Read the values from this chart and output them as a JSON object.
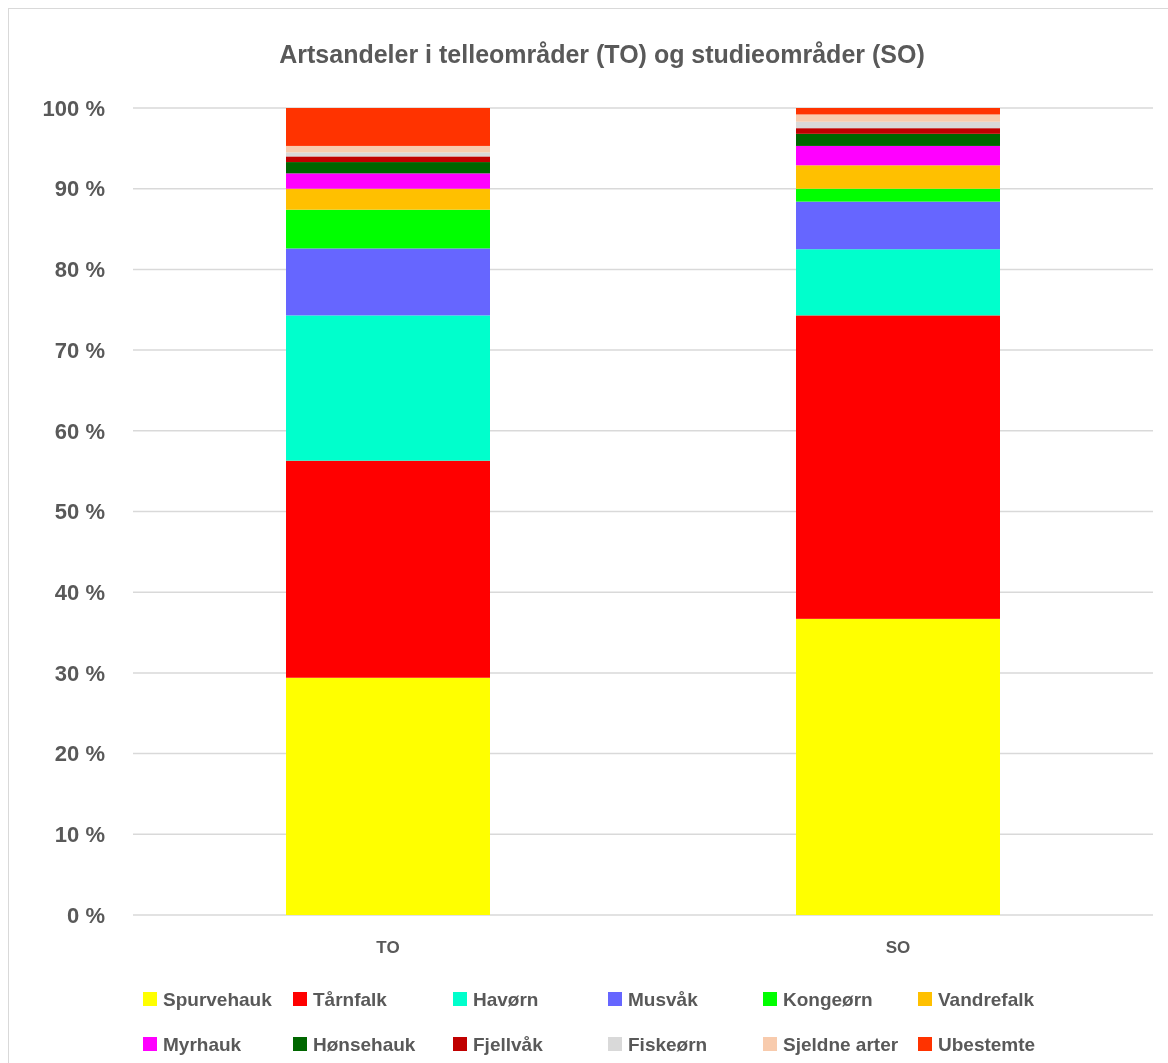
{
  "chart_data": {
    "type": "bar",
    "title": "Artsandeler i telleområder (TO) og studieområder (SO)",
    "categories": [
      "TO",
      "SO"
    ],
    "stacked": true,
    "ylim": [
      0,
      100
    ],
    "yticks": [
      {
        "value": 0,
        "label": "0 %"
      },
      {
        "value": 10,
        "label": "10 %"
      },
      {
        "value": 20,
        "label": "20 %"
      },
      {
        "value": 30,
        "label": "30 %"
      },
      {
        "value": 40,
        "label": "40 %"
      },
      {
        "value": 50,
        "label": "50 %"
      },
      {
        "value": 60,
        "label": "60 %"
      },
      {
        "value": 70,
        "label": "70 %"
      },
      {
        "value": 80,
        "label": "80 %"
      },
      {
        "value": 90,
        "label": "90 %"
      },
      {
        "value": 100,
        "label": "100 %"
      }
    ],
    "grid": "y",
    "legend": "bottom",
    "series": [
      {
        "name": "Spurvehauk",
        "color": "#ffff00",
        "values": [
          29.4,
          36.7
        ]
      },
      {
        "name": "Tårnfalk",
        "color": "#ff0000",
        "values": [
          26.9,
          37.6
        ]
      },
      {
        "name": "Havørn",
        "color": "#00ffcc",
        "values": [
          18.0,
          8.2
        ]
      },
      {
        "name": "Musvåk",
        "color": "#6666ff",
        "values": [
          8.3,
          5.9
        ]
      },
      {
        "name": "Kongeørn",
        "color": "#00ff00",
        "values": [
          4.8,
          1.6
        ]
      },
      {
        "name": "Vandrefalk",
        "color": "#ffc000",
        "values": [
          2.6,
          2.9
        ]
      },
      {
        "name": "Myrhauk",
        "color": "#ff00ff",
        "values": [
          1.9,
          2.4
        ]
      },
      {
        "name": "Hønsehauk",
        "color": "#006600",
        "values": [
          1.4,
          1.5
        ]
      },
      {
        "name": "Fjellvåk",
        "color": "#c00000",
        "values": [
          0.7,
          0.7
        ]
      },
      {
        "name": "Fiskeørn",
        "color": "#d9d9d9",
        "values": [
          0.5,
          0.8
        ]
      },
      {
        "name": "Sjeldne arter",
        "color": "#f8cbad",
        "values": [
          0.8,
          0.9
        ]
      },
      {
        "name": "Ubestemte",
        "color": "#ff3300",
        "values": [
          4.7,
          0.8
        ]
      }
    ]
  }
}
